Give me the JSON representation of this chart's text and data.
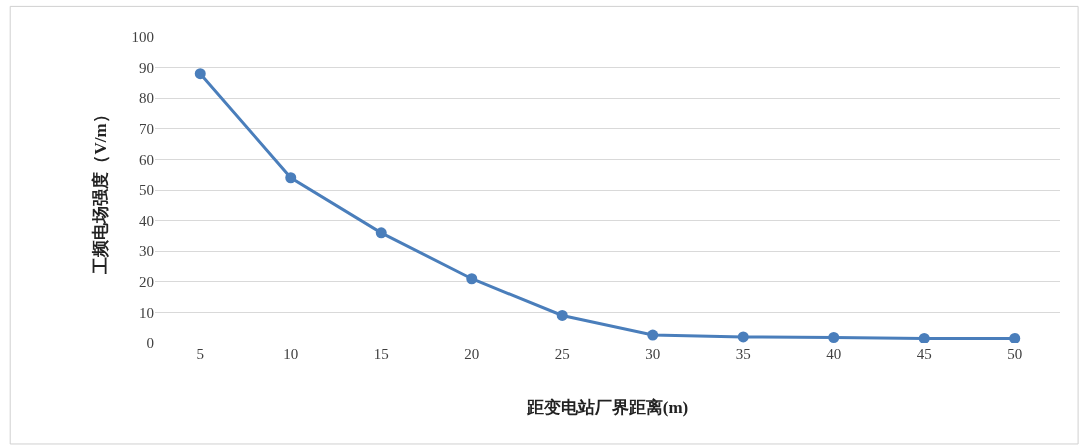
{
  "chart_data": {
    "type": "line",
    "xlabel": "距变电站厂界距离(m)",
    "ylabel": "工频电场强度（V/m）",
    "categories": [
      "5",
      "10",
      "15",
      "20",
      "25",
      "30",
      "35",
      "40",
      "45",
      "50"
    ],
    "series": [
      {
        "color": "#4a7ebb",
        "values": [
          88,
          54,
          36,
          21,
          9,
          2.6,
          2,
          1.8,
          1.5,
          1.5
        ]
      }
    ],
    "ylim": [
      0,
      100
    ],
    "yticks": [
      0,
      10,
      20,
      30,
      40,
      50,
      60,
      70,
      80,
      90,
      100
    ],
    "grid": "y",
    "legend": false,
    "marker": "circle",
    "line_style": "solid"
  }
}
